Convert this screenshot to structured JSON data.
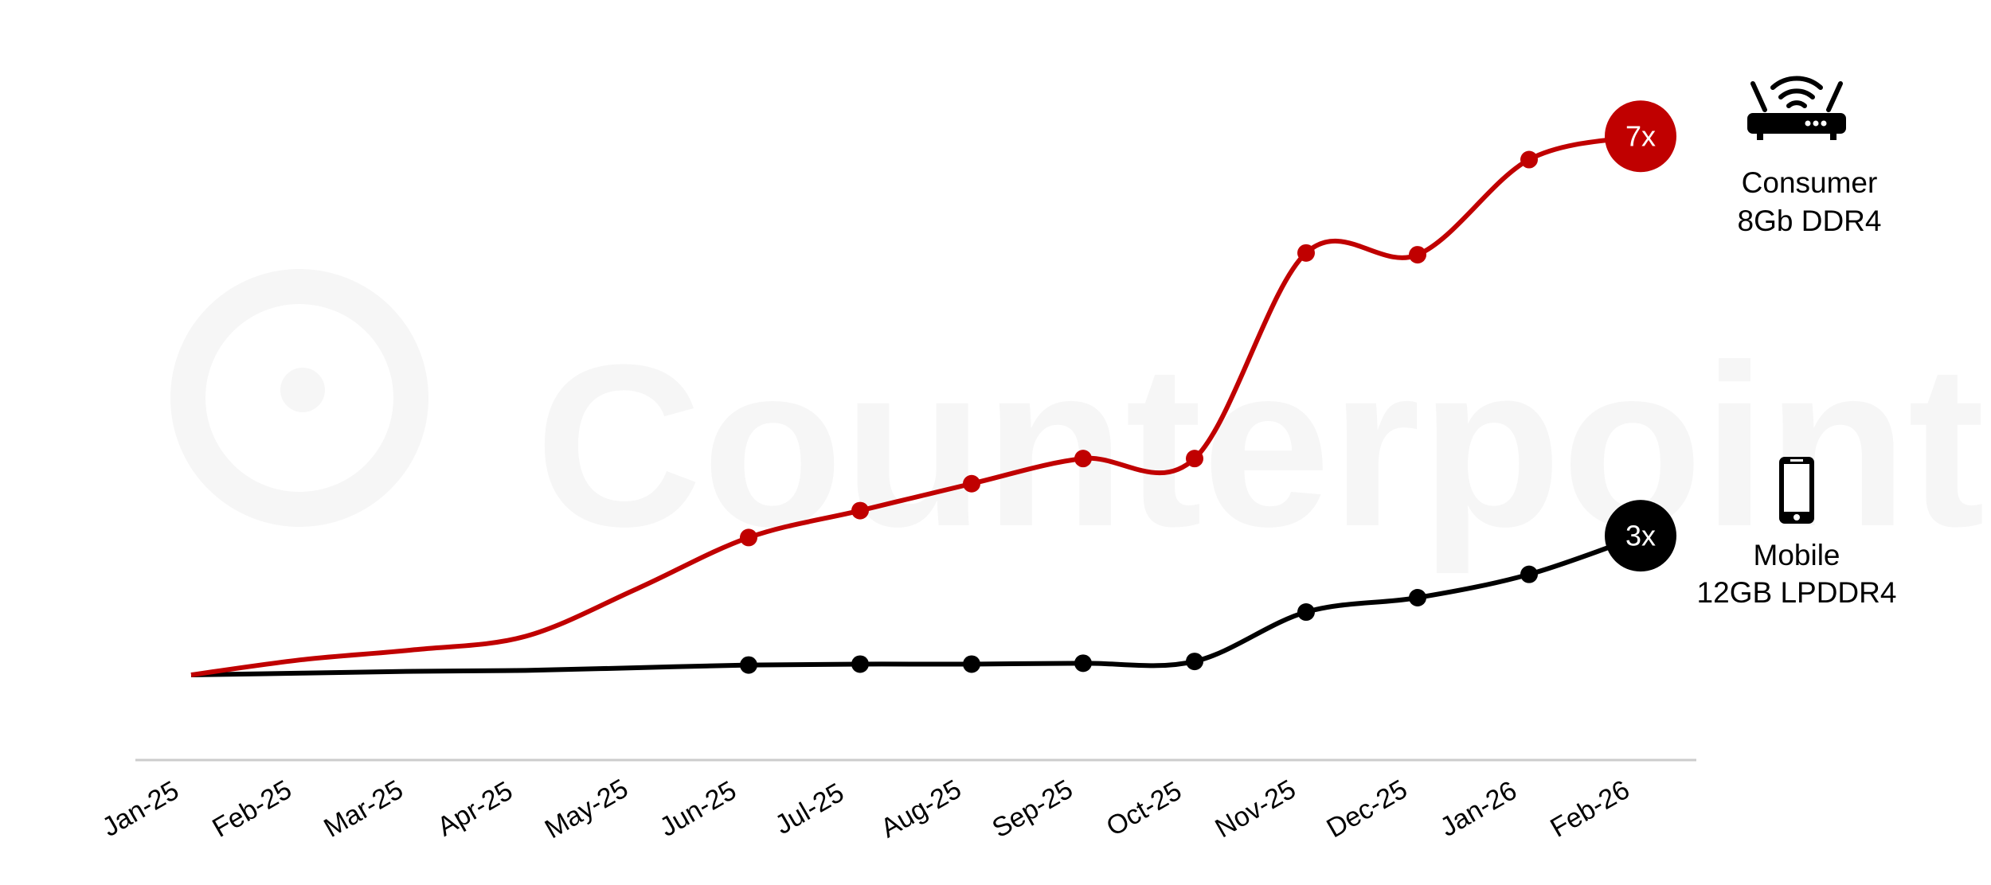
{
  "watermark": {
    "text": "Counterpoint",
    "color": "#f6f6f6"
  },
  "chart_data": {
    "type": "line",
    "title": "",
    "xlabel": "",
    "ylabel": "",
    "grid": false,
    "categories": [
      "Jan-25",
      "Feb-25",
      "Mar-25",
      "Apr-25",
      "May-25",
      "Jun-25",
      "Jul-25",
      "Aug-25",
      "Sep-25",
      "Oct-25",
      "Nov-25",
      "Dec-25",
      "Jan-26",
      "Feb-26"
    ],
    "series": [
      {
        "name": "Consumer 8Gb DDR4",
        "label_lines": [
          "Consumer",
          "8Gb DDR4"
        ],
        "icon": "router-icon",
        "color": "#c00000",
        "end_label": "7x",
        "values": [
          1.0,
          1.17,
          1.28,
          1.43,
          1.96,
          2.53,
          2.83,
          3.13,
          3.41,
          3.41,
          5.7,
          5.68,
          6.74,
          7.0
        ],
        "markers_from": "Jun-25"
      },
      {
        "name": "Mobile 12GB LPDDR4",
        "label_lines": [
          "Mobile",
          "12GB LPDDR4"
        ],
        "icon": "smartphone-icon",
        "color": "#000000",
        "end_label": "3x",
        "values": [
          1.0,
          1.02,
          1.04,
          1.05,
          1.08,
          1.11,
          1.12,
          1.12,
          1.13,
          1.15,
          1.7,
          1.86,
          2.12,
          2.55
        ],
        "markers_from": "Jun-25"
      }
    ],
    "axis_color": "#cccccc"
  }
}
